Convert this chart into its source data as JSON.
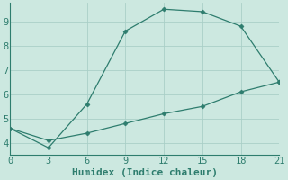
{
  "xlabel": "Humidex (Indice chaleur)",
  "background_color": "#cce8e0",
  "line_color": "#2e7d6e",
  "grid_color": "#aacfc7",
  "xlim": [
    0,
    21
  ],
  "ylim": [
    3.5,
    9.75
  ],
  "xticks": [
    0,
    3,
    6,
    9,
    12,
    15,
    18,
    21
  ],
  "yticks": [
    4,
    5,
    6,
    7,
    8,
    9
  ],
  "line1_x": [
    0,
    3,
    6,
    9,
    12,
    15,
    18,
    21
  ],
  "line1_y": [
    4.6,
    3.8,
    5.6,
    8.6,
    9.5,
    9.4,
    8.8,
    6.5
  ],
  "line2_x": [
    0,
    3,
    6,
    9,
    12,
    15,
    18,
    21
  ],
  "line2_y": [
    4.6,
    4.1,
    4.4,
    4.8,
    5.2,
    5.5,
    6.1,
    6.5
  ],
  "font_family": "monospace",
  "fontsize_label": 8,
  "fontsize_tick": 7.5
}
